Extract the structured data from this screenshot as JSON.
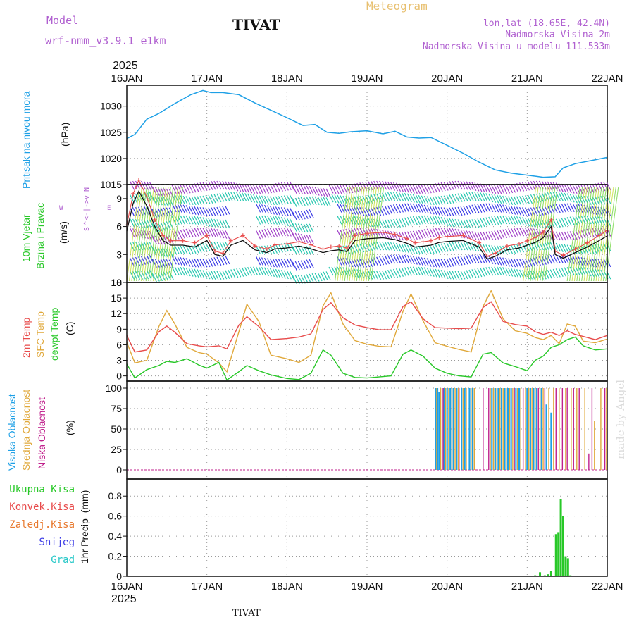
{
  "header": {
    "model_label": "Model",
    "model_name": "wrf-nmm_v3.9.1  e1km",
    "station_title": "TIVAT",
    "product": "Meteogram",
    "lonlat": "lon,lat (18.65E, 42.4N)",
    "altitude": "Nadmorska Visina 2m",
    "model_altitude": "Nadmorska Visina u modelu 111.533m",
    "year_top": "2025",
    "year_bottom": "2025",
    "footer_station": "TIVAT",
    "credit": "made by Angel"
  },
  "colors": {
    "pressure": "#1ea0e6",
    "temp2m": "#e84c4c",
    "sfc": "#e0a83a",
    "dewpt": "#28c828",
    "high_cloud": "#1ea0e6",
    "mid_cloud": "#e0a83a",
    "low_cloud": "#c0208c",
    "precip": "#28c828",
    "wind_label": "#28c828",
    "arrow_purple": "#a040c8"
  },
  "chart_data": [
    {
      "type": "line",
      "panel": "pressure",
      "ylabel_parts": [
        "Pritisak na nivou mora",
        "(hPa)"
      ],
      "ylim": [
        1015,
        1034
      ],
      "yticks": [
        1015,
        1020,
        1025,
        1030
      ],
      "x_days": [
        "16JAN",
        "17JAN",
        "18JAN",
        "19JAN",
        "20JAN",
        "21JAN",
        "22JAN"
      ],
      "x": [
        0,
        0.1,
        0.25,
        0.4,
        0.6,
        0.8,
        0.95,
        1.05,
        1.2,
        1.4,
        1.6,
        1.8,
        2.0,
        2.2,
        2.35,
        2.5,
        2.65,
        2.8,
        3.0,
        3.2,
        3.35,
        3.5,
        3.65,
        3.8,
        4.0,
        4.2,
        4.4,
        4.6,
        4.8,
        5.0,
        5.2,
        5.35,
        5.45,
        5.6,
        5.8,
        6.0
      ],
      "values": [
        1023.8,
        1024.6,
        1027.5,
        1028.6,
        1030.5,
        1032.2,
        1033.0,
        1032.6,
        1032.6,
        1032.2,
        1030.6,
        1029.2,
        1027.8,
        1026.3,
        1026.5,
        1025.0,
        1024.8,
        1025.1,
        1025.3,
        1024.7,
        1025.2,
        1024.1,
        1023.9,
        1024.0,
        1022.5,
        1021.0,
        1019.3,
        1017.8,
        1017.2,
        1016.8,
        1016.4,
        1016.5,
        1018.2,
        1019.0,
        1019.6,
        1020.2
      ]
    },
    {
      "type": "line",
      "panel": "wind",
      "ylabel_parts": [
        "10m Vjetar",
        "Brzina i Pravac",
        "(m/s)"
      ],
      "compass": {
        "w": "W",
        "arrow": "<-|->",
        "e": "E",
        "n": "N",
        "s": "S",
        "v1": "v",
        "v2": "^"
      },
      "ylim": [
        0,
        10.5
      ],
      "yticks": [
        0,
        3,
        6,
        9
      ],
      "x": [
        0,
        0.08,
        0.15,
        0.25,
        0.35,
        0.45,
        0.55,
        0.7,
        0.85,
        1.0,
        1.1,
        1.2,
        1.3,
        1.45,
        1.6,
        1.75,
        1.85,
        2.0,
        2.15,
        2.3,
        2.45,
        2.55,
        2.65,
        2.75,
        2.85,
        3.0,
        3.2,
        3.35,
        3.5,
        3.6,
        3.7,
        3.8,
        3.9,
        4.0,
        4.2,
        4.4,
        4.5,
        4.6,
        4.75,
        4.9,
        5.0,
        5.1,
        5.2,
        5.3,
        5.35,
        5.45,
        5.6,
        5.75,
        5.9,
        6.0
      ],
      "series": [
        {
          "values": [
            5.5,
            8.5,
            9.8,
            8.2,
            6.0,
            4.5,
            4.0,
            4.0,
            3.8,
            4.5,
            3.0,
            2.8,
            4.0,
            4.5,
            3.5,
            3.2,
            3.6,
            3.7,
            3.9,
            3.6,
            3.2,
            3.4,
            3.5,
            3.3,
            4.5,
            4.7,
            4.8,
            4.6,
            4.2,
            3.8,
            3.9,
            4.0,
            4.3,
            4.4,
            4.5,
            3.8,
            2.5,
            2.8,
            3.5,
            3.7,
            4.0,
            4.3,
            4.8,
            6.0,
            3.0,
            2.6,
            3.2,
            3.8,
            4.5,
            5.0
          ]
        }
      ]
    },
    {
      "type": "line",
      "panel": "temperature",
      "ylabel_parts": [
        "2m Temp",
        "SFC Temp",
        "dewpt Temp",
        "(C)"
      ],
      "ylim": [
        -1,
        18
      ],
      "yticks": [
        0,
        3,
        6,
        9,
        12,
        15,
        18
      ],
      "x": [
        0,
        0.1,
        0.25,
        0.4,
        0.5,
        0.6,
        0.75,
        0.9,
        1.0,
        1.15,
        1.25,
        1.4,
        1.5,
        1.65,
        1.8,
        2.0,
        2.15,
        2.3,
        2.45,
        2.55,
        2.7,
        2.85,
        3.0,
        3.15,
        3.3,
        3.45,
        3.55,
        3.7,
        3.85,
        4.0,
        4.15,
        4.3,
        4.45,
        4.55,
        4.7,
        4.85,
        5.0,
        5.1,
        5.2,
        5.3,
        5.4,
        5.5,
        5.6,
        5.7,
        5.85,
        6.0
      ],
      "series": [
        {
          "name": "2m Temp",
          "values": [
            7.8,
            4.6,
            5.0,
            8.5,
            9.6,
            8.4,
            6.2,
            5.8,
            5.6,
            5.8,
            5.2,
            9.8,
            11.4,
            9.5,
            7.0,
            7.2,
            7.5,
            8.1,
            12.8,
            14.1,
            11.2,
            9.8,
            9.3,
            8.9,
            8.9,
            13.4,
            14.3,
            11.0,
            9.3,
            9.2,
            9.1,
            9.2,
            13.2,
            14.3,
            10.5,
            9.9,
            9.6,
            8.5,
            8.0,
            8.4,
            7.8,
            8.7,
            8.0,
            7.6,
            7.0,
            7.8
          ]
        },
        {
          "name": "SFC Temp",
          "values": [
            6.5,
            2.5,
            3.0,
            9.5,
            12.6,
            10.0,
            5.5,
            4.5,
            4.2,
            2.5,
            0.8,
            8.5,
            13.8,
            10.5,
            4.0,
            3.3,
            2.6,
            4.0,
            13.5,
            16.0,
            10.0,
            6.8,
            6.1,
            5.7,
            5.6,
            12.5,
            15.8,
            10.6,
            6.4,
            5.7,
            5.1,
            4.6,
            13.4,
            16.4,
            11.0,
            8.7,
            8.2,
            7.4,
            7.0,
            7.8,
            6.2,
            10.0,
            9.6,
            6.7,
            6.4,
            7.1
          ]
        },
        {
          "name": "dewpt Temp",
          "values": [
            2.3,
            -0.4,
            1.2,
            2.0,
            2.8,
            2.6,
            3.3,
            2.1,
            1.5,
            2.6,
            -0.8,
            0.8,
            2.0,
            1.0,
            0.2,
            -0.5,
            -0.7,
            0.5,
            5.0,
            4.0,
            0.5,
            -0.3,
            -0.4,
            -0.2,
            0.0,
            4.2,
            5.0,
            3.8,
            1.5,
            0.5,
            0.0,
            -0.2,
            4.2,
            4.5,
            2.5,
            1.8,
            1.0,
            3.0,
            3.8,
            5.5,
            6.0,
            7.0,
            7.5,
            5.8,
            5.0,
            5.2
          ]
        }
      ]
    },
    {
      "type": "bar",
      "panel": "cloud",
      "ylabel_parts": [
        "Visoka Oblacnost",
        "Srednja Oblacnost",
        "Niska Oblacnost",
        "(%)"
      ],
      "ylim": [
        0,
        100
      ],
      "yticks": [
        0,
        25,
        50,
        75,
        100
      ],
      "series": [
        {
          "name": "Visoka Oblacnost",
          "x": [
            3.86,
            3.88,
            3.9,
            3.96,
            4.0,
            4.04,
            4.08,
            4.12,
            4.18,
            4.22,
            4.28,
            4.32,
            4.56,
            4.6,
            4.64,
            4.68,
            4.72,
            4.76,
            4.8,
            4.86,
            4.9,
            5.0,
            5.04,
            5.08,
            5.12,
            5.18,
            5.24,
            5.3
          ],
          "values": [
            100,
            100,
            95,
            100,
            100,
            100,
            100,
            100,
            100,
            100,
            100,
            100,
            100,
            100,
            100,
            100,
            100,
            100,
            100,
            100,
            100,
            100,
            100,
            100,
            100,
            100,
            80,
            70
          ]
        },
        {
          "name": "Srednja Oblacnost",
          "x": [
            3.87,
            3.92,
            3.98,
            4.02,
            4.06,
            4.1,
            4.14,
            4.2,
            4.24,
            4.3,
            4.34,
            4.54,
            4.58,
            4.62,
            4.66,
            4.7,
            4.74,
            4.78,
            4.82,
            4.88,
            4.92,
            4.98,
            5.02,
            5.06,
            5.1,
            5.16,
            5.2,
            5.27,
            5.33,
            5.4,
            5.48,
            5.55,
            5.62,
            5.72,
            5.84,
            5.92,
            5.99
          ],
          "values": [
            100,
            100,
            100,
            100,
            100,
            100,
            100,
            100,
            100,
            100,
            100,
            100,
            100,
            100,
            100,
            100,
            100,
            100,
            100,
            100,
            100,
            100,
            100,
            100,
            100,
            100,
            100,
            100,
            100,
            100,
            100,
            100,
            100,
            100,
            60,
            100,
            100
          ]
        },
        {
          "name": "Niska Oblacnost",
          "x": [
            3.95,
            4.15,
            4.45,
            4.52,
            4.84,
            4.95,
            5.14,
            5.22,
            5.36,
            5.44,
            5.5,
            5.58,
            5.65,
            5.77,
            5.81,
            5.97
          ],
          "values": [
            100,
            100,
            100,
            100,
            100,
            100,
            100,
            100,
            100,
            100,
            100,
            100,
            100,
            20,
            100,
            100
          ]
        }
      ]
    },
    {
      "type": "bar",
      "panel": "precipitation",
      "ylabel_parts": [
        "1hr Precip",
        "(mm)"
      ],
      "legend": [
        "Ukupna Kisa",
        "Konvek.Kisa",
        "Zaledj.Kisa",
        "Snijeg",
        "Grad"
      ],
      "legend_colors": [
        "#28c828",
        "#e84c4c",
        "#e87a30",
        "#3c3ce6",
        "#28c8c8"
      ],
      "ylim": [
        0,
        0.9
      ],
      "yticks": [
        0,
        0.2,
        0.4,
        0.6,
        0.8
      ],
      "x": [
        5.1,
        5.16,
        5.22,
        5.26,
        5.3,
        5.36,
        5.39,
        5.42,
        5.45,
        5.48,
        5.51,
        5.54
      ],
      "values": [
        0.01,
        0.04,
        0.01,
        0.02,
        0.05,
        0.42,
        0.44,
        0.77,
        0.6,
        0.2,
        0.18,
        0.01
      ]
    }
  ]
}
